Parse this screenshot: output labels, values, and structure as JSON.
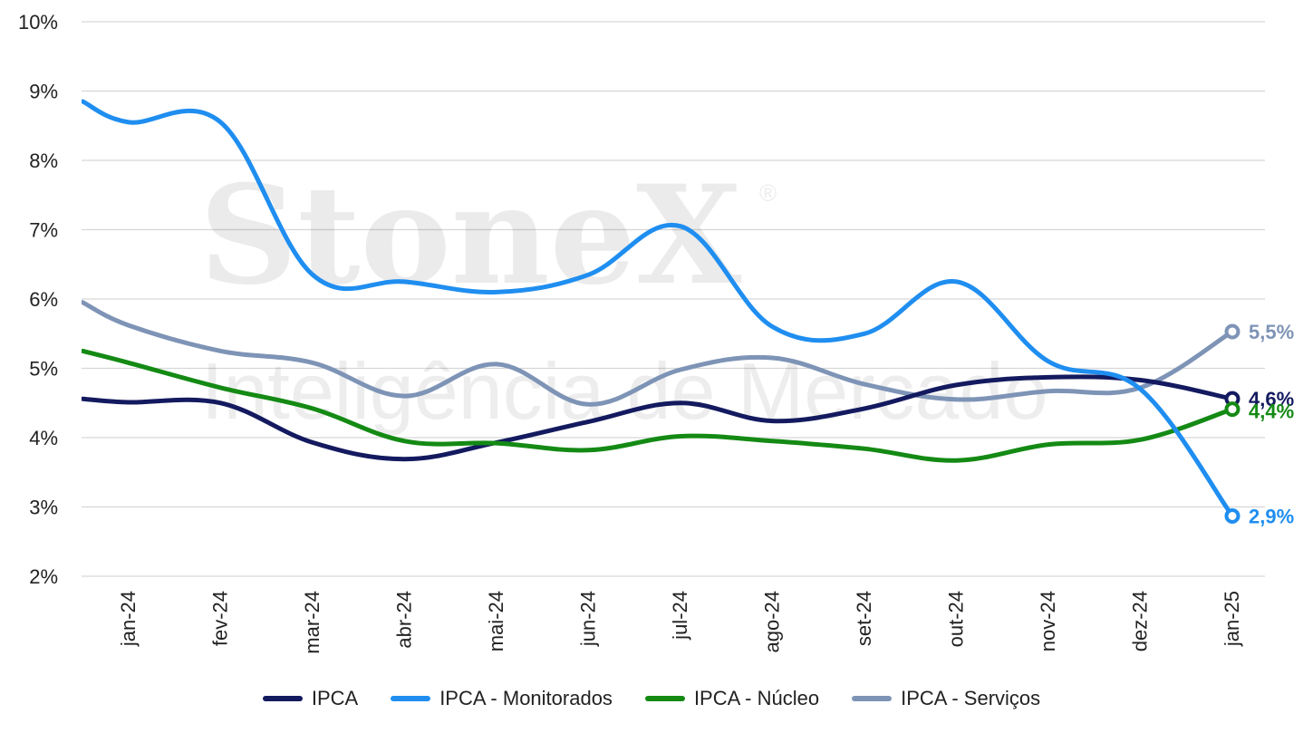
{
  "watermark": {
    "brand": "StoneX",
    "tagline": "Inteligência de Mercado",
    "registered": "®"
  },
  "chart_data": {
    "type": "line",
    "categories": [
      "jan-24",
      "fev-24",
      "mar-24",
      "abr-24",
      "mai-24",
      "jun-24",
      "jul-24",
      "ago-24",
      "set-24",
      "out-24",
      "nov-24",
      "dez-24",
      "jan-25"
    ],
    "y_ticks": [
      "2%",
      "3%",
      "4%",
      "5%",
      "6%",
      "7%",
      "8%",
      "9%",
      "10%"
    ],
    "ylim": [
      2,
      10
    ],
    "grid": true,
    "legend_position": "bottom",
    "series": [
      {
        "name": "IPCA",
        "color": "#141a5f",
        "x": [
          -0.5,
          0,
          1,
          2,
          3,
          4,
          5,
          6,
          7,
          8,
          9,
          10,
          11,
          12
        ],
        "values": [
          4.56,
          4.51,
          4.5,
          3.93,
          3.69,
          3.93,
          4.23,
          4.5,
          4.24,
          4.42,
          4.76,
          4.87,
          4.83,
          4.56
        ],
        "end_label": "4,6%"
      },
      {
        "name": "IPCA - Monitorados",
        "color": "#1f8ef0",
        "x": [
          -0.5,
          0,
          1,
          2,
          3,
          4,
          5,
          6,
          7,
          8,
          9,
          10,
          11,
          12
        ],
        "values": [
          8.85,
          8.55,
          8.55,
          6.35,
          6.25,
          6.1,
          6.35,
          7.05,
          5.6,
          5.5,
          6.25,
          5.1,
          4.7,
          2.87
        ],
        "end_label": "2,9%"
      },
      {
        "name": "IPCA - Núcleo",
        "color": "#148a14",
        "x": [
          -0.5,
          0,
          1,
          2,
          3,
          4,
          5,
          6,
          7,
          8,
          9,
          10,
          11,
          12
        ],
        "values": [
          5.25,
          5.08,
          4.72,
          4.42,
          3.95,
          3.92,
          3.82,
          4.02,
          3.95,
          3.84,
          3.67,
          3.9,
          3.97,
          4.41
        ],
        "end_label": "4,4%"
      },
      {
        "name": "IPCA - Serviços",
        "color": "#7e94b6",
        "x": [
          -0.5,
          0,
          1,
          2,
          3,
          4,
          5,
          6,
          7,
          8,
          9,
          10,
          11,
          12
        ],
        "values": [
          5.95,
          5.62,
          5.25,
          5.08,
          4.6,
          5.06,
          4.48,
          4.98,
          5.15,
          4.77,
          4.55,
          4.67,
          4.72,
          5.53
        ],
        "end_label": "5,5%"
      }
    ]
  }
}
